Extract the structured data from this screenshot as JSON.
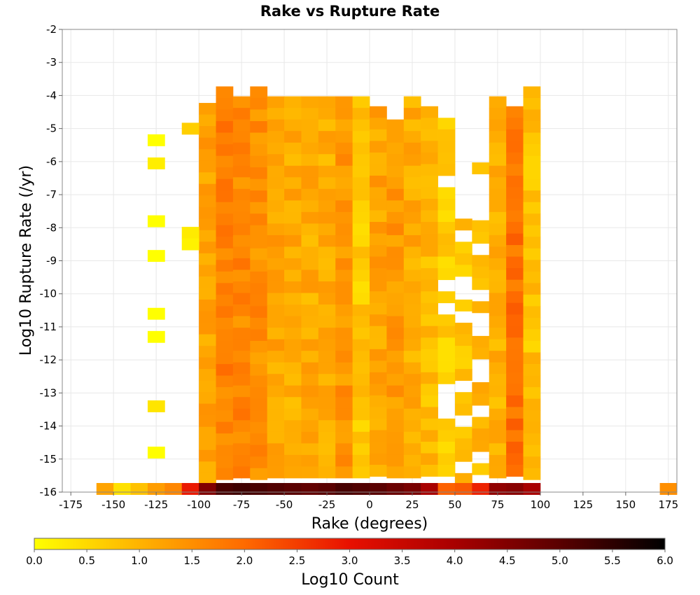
{
  "chart_data": {
    "type": "heatmap",
    "title": "Rake vs Rupture Rate",
    "xlabel": "Rake (degrees)",
    "ylabel": "Log10 Rupture Rate (/yr)",
    "xlim": [
      -180,
      180
    ],
    "ylim": [
      -16,
      -2
    ],
    "xticks": [
      -175,
      -150,
      -125,
      -100,
      -75,
      -50,
      -25,
      0,
      25,
      50,
      75,
      100,
      125,
      150,
      175
    ],
    "yticks": [
      -2,
      -3,
      -4,
      -5,
      -6,
      -7,
      -8,
      -9,
      -10,
      -11,
      -12,
      -13,
      -14,
      -15,
      -16
    ],
    "x_bin_width": 10,
    "y_bin_height": 0.35,
    "grid": true,
    "colorbar": {
      "label": "Log10 Count",
      "range": [
        0.0,
        6.0
      ],
      "ticks": [
        "0.0",
        "0.5",
        "1.0",
        "1.5",
        "2.0",
        "2.5",
        "3.0",
        "3.5",
        "4.0",
        "4.5",
        "5.0",
        "5.5",
        "6.0"
      ],
      "stops": [
        "#ffff00",
        "#ffb300",
        "#ff6a00",
        "#e81000",
        "#a80000",
        "#5a0000",
        "#000000"
      ]
    },
    "column_value_ranges": [
      {
        "x_center": -95,
        "y_min": -15.8,
        "y_max": -4.4
      },
      {
        "x_center": -85,
        "y_min": -15.6,
        "y_max": -3.9
      },
      {
        "x_center": -75,
        "y_min": -15.6,
        "y_max": -4.2
      },
      {
        "x_center": -65,
        "y_min": -15.6,
        "y_max": -3.9
      },
      {
        "x_center": -55,
        "y_min": -15.6,
        "y_max": -4.2
      },
      {
        "x_center": -45,
        "y_min": -15.6,
        "y_max": -4.2
      },
      {
        "x_center": -35,
        "y_min": -15.6,
        "y_max": -4.2
      },
      {
        "x_center": -25,
        "y_min": -15.6,
        "y_max": -4.2
      },
      {
        "x_center": -15,
        "y_min": -15.6,
        "y_max": -4.2
      },
      {
        "x_center": -5,
        "y_min": -15.6,
        "y_max": -4.2
      },
      {
        "x_center": 5,
        "y_min": -15.6,
        "y_max": -4.5
      },
      {
        "x_center": 15,
        "y_min": -15.6,
        "y_max": -4.9
      },
      {
        "x_center": 25,
        "y_min": -15.6,
        "y_max": -4.2
      },
      {
        "x_center": 35,
        "y_min": -15.6,
        "y_max": -4.5
      },
      {
        "x_center": 45,
        "y_min": -15.6,
        "y_max": -4.5
      },
      {
        "x_center": 55,
        "y_min": -15.6,
        "y_max": -7.9
      },
      {
        "x_center": 65,
        "y_min": -15.6,
        "y_max": -6.2
      },
      {
        "x_center": 75,
        "y_min": -15.6,
        "y_max": -4.2
      },
      {
        "x_center": 85,
        "y_min": -15.6,
        "y_max": -4.5
      },
      {
        "x_center": 95,
        "y_min": -15.6,
        "y_max": -3.9
      },
      {
        "x_center": -105,
        "y_min": -15.6,
        "y_max": -5.0
      },
      {
        "x_center": -125,
        "y_min": -15.6,
        "y_max": -5.0
      }
    ],
    "bottom_row": {
      "y_center": -15.9,
      "x_centers": [
        -155,
        -145,
        -135,
        -125,
        -115,
        -105,
        -95,
        -85,
        -75,
        -65,
        -55,
        -45,
        -35,
        -25,
        -15,
        -5,
        5,
        15,
        25,
        35,
        45,
        55,
        65,
        75,
        85,
        95,
        175
      ],
      "values": [
        1.2,
        0.4,
        0.8,
        1.3,
        1.6,
        2.9,
        4.5,
        5.2,
        5.3,
        5.2,
        5.1,
        5.0,
        4.9,
        5.0,
        5.2,
        5.1,
        5.0,
        4.8,
        4.6,
        4.0,
        2.1,
        2.2,
        2.8,
        4.3,
        4.4,
        4.0,
        1.5
      ]
    }
  }
}
